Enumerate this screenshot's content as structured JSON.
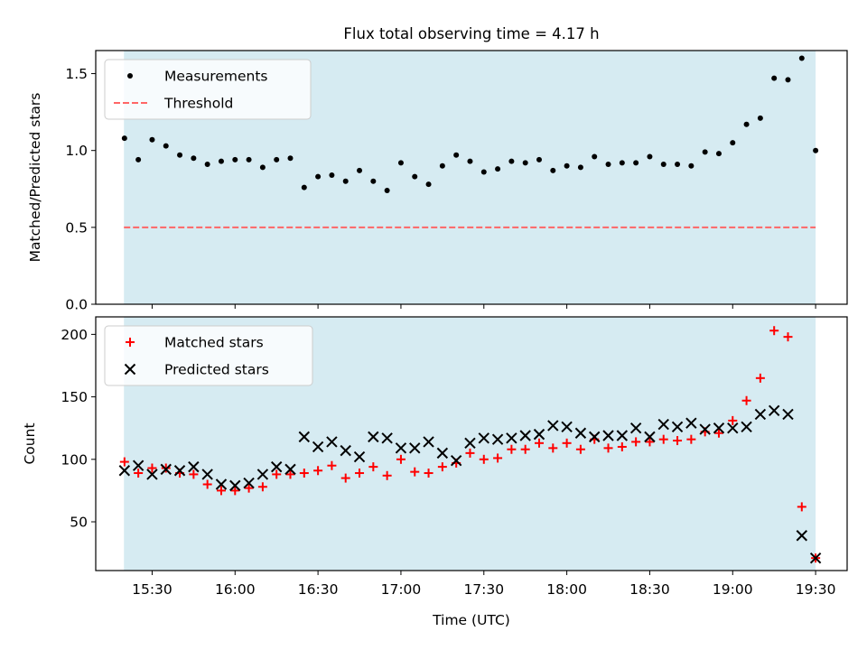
{
  "title": "Flux total observing time = 4.17 h",
  "colors": {
    "background_band": "#add8e6",
    "measurements": "#000000",
    "threshold": "#ff6666",
    "matched": "#ff0000",
    "predicted": "#000000"
  },
  "chart_data": [
    {
      "type": "scatter",
      "ylabel": "Matched/Predicted stars",
      "ylim": [
        0,
        1.65
      ],
      "yticks": [
        "0.0",
        "0.5",
        "1.0",
        "1.5"
      ],
      "xlim_hours": [
        15.16,
        19.69
      ],
      "shaded_range_hours": [
        15.33,
        19.5
      ],
      "legend": {
        "placement": "upper-left",
        "entries": [
          "Measurements",
          "Threshold"
        ]
      },
      "threshold": 0.5,
      "series": [
        {
          "name": "Measurements",
          "x": [
            "15:20",
            "15:25",
            "15:30",
            "15:35",
            "15:40",
            "15:45",
            "15:50",
            "15:55",
            "16:00",
            "16:05",
            "16:10",
            "16:15",
            "16:20",
            "16:25",
            "16:30",
            "16:35",
            "16:40",
            "16:45",
            "16:50",
            "16:55",
            "17:00",
            "17:05",
            "17:10",
            "17:15",
            "17:20",
            "17:25",
            "17:30",
            "17:35",
            "17:40",
            "17:45",
            "17:50",
            "17:55",
            "18:00",
            "18:05",
            "18:10",
            "18:15",
            "18:20",
            "18:25",
            "18:30",
            "18:35",
            "18:40",
            "18:45",
            "18:50",
            "18:55",
            "19:00",
            "19:05",
            "19:10",
            "19:15",
            "19:20",
            "19:25",
            "19:30"
          ],
          "y": [
            1.08,
            0.94,
            1.07,
            1.03,
            0.97,
            0.95,
            0.91,
            0.93,
            0.94,
            0.94,
            0.89,
            0.94,
            0.95,
            0.76,
            0.83,
            0.84,
            0.8,
            0.87,
            0.8,
            0.74,
            0.92,
            0.83,
            0.78,
            0.9,
            0.97,
            0.93,
            0.86,
            0.88,
            0.93,
            0.92,
            0.94,
            0.87,
            0.9,
            0.89,
            0.96,
            0.91,
            0.92,
            0.92,
            0.96,
            0.91,
            0.91,
            0.9,
            0.99,
            0.98,
            1.05,
            1.17,
            1.21,
            1.47,
            1.46,
            1.6,
            1.0
          ]
        }
      ]
    },
    {
      "type": "scatter",
      "xlabel": "Time (UTC)",
      "ylabel": "Count",
      "ylim": [
        11,
        214
      ],
      "yticks": [
        "50",
        "100",
        "150",
        "200"
      ],
      "xticks": [
        "15:30",
        "16:00",
        "16:30",
        "17:00",
        "17:30",
        "18:00",
        "18:30",
        "19:00",
        "19:30"
      ],
      "legend": {
        "placement": "upper-left",
        "entries": [
          "Matched stars",
          "Predicted stars"
        ]
      },
      "series": [
        {
          "name": "Matched stars",
          "x": [
            "15:20",
            "15:25",
            "15:30",
            "15:35",
            "15:40",
            "15:45",
            "15:50",
            "15:55",
            "16:00",
            "16:05",
            "16:10",
            "16:15",
            "16:20",
            "16:25",
            "16:30",
            "16:35",
            "16:40",
            "16:45",
            "16:50",
            "16:55",
            "17:00",
            "17:05",
            "17:10",
            "17:15",
            "17:20",
            "17:25",
            "17:30",
            "17:35",
            "17:40",
            "17:45",
            "17:50",
            "17:55",
            "18:00",
            "18:05",
            "18:10",
            "18:15",
            "18:20",
            "18:25",
            "18:30",
            "18:35",
            "18:40",
            "18:45",
            "18:50",
            "18:55",
            "19:00",
            "19:05",
            "19:10",
            "19:15",
            "19:20",
            "19:25",
            "19:30"
          ],
          "y": [
            98,
            89,
            93,
            93,
            89,
            88,
            80,
            75,
            75,
            77,
            78,
            88,
            88,
            89,
            91,
            95,
            85,
            89,
            94,
            87,
            100,
            90,
            89,
            94,
            97,
            105,
            100,
            101,
            108,
            108,
            113,
            109,
            113,
            108,
            116,
            109,
            110,
            114,
            114,
            116,
            115,
            116,
            122,
            121,
            131,
            147,
            165,
            203,
            198,
            62,
            21
          ]
        },
        {
          "name": "Predicted stars",
          "x": [
            "15:20",
            "15:25",
            "15:30",
            "15:35",
            "15:40",
            "15:45",
            "15:50",
            "15:55",
            "16:00",
            "16:05",
            "16:10",
            "16:15",
            "16:20",
            "16:25",
            "16:30",
            "16:35",
            "16:40",
            "16:45",
            "16:50",
            "16:55",
            "17:00",
            "17:05",
            "17:10",
            "17:15",
            "17:20",
            "17:25",
            "17:30",
            "17:35",
            "17:40",
            "17:45",
            "17:50",
            "17:55",
            "18:00",
            "18:05",
            "18:10",
            "18:15",
            "18:20",
            "18:25",
            "18:30",
            "18:35",
            "18:40",
            "18:45",
            "18:50",
            "18:55",
            "19:00",
            "19:05",
            "19:10",
            "19:15",
            "19:20",
            "19:25",
            "19:30"
          ],
          "y": [
            91,
            95,
            88,
            92,
            91,
            94,
            88,
            80,
            79,
            81,
            88,
            94,
            92,
            118,
            110,
            114,
            107,
            102,
            118,
            117,
            109,
            109,
            114,
            105,
            99,
            113,
            117,
            116,
            117,
            119,
            120,
            127,
            126,
            121,
            118,
            119,
            119,
            125,
            118,
            128,
            126,
            129,
            124,
            125,
            125,
            126,
            136,
            139,
            136,
            39,
            21
          ]
        }
      ]
    }
  ]
}
